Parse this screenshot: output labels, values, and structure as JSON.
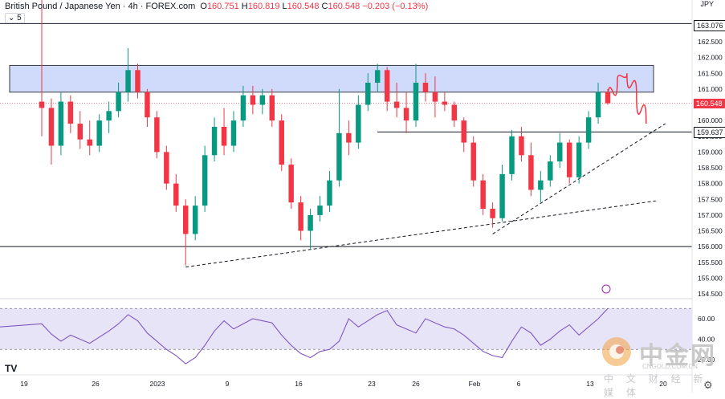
{
  "header": {
    "symbol": "British Pound / Japanese Yen · 4h · FOREX.com",
    "o_label": "O",
    "open": "160.751",
    "h_label": "H",
    "high": "160.819",
    "l_label": "L",
    "low": "160.548",
    "c_label": "C",
    "close": "160.548",
    "change": "−0.203 (−0.13%)",
    "sub_label": "5"
  },
  "currency": "JPY",
  "price_tags": {
    "resistance": "163.076",
    "current": "160.548",
    "support_mid": "159.637"
  },
  "watermark": {
    "cn": "中金网",
    "url": "CNGOLD.COM.CN",
    "sub": "中 文 财 经 新 媒 体",
    "logo": "cngold-logo"
  },
  "tv_logo": "TV",
  "settings_icon": "gear-icon",
  "colors": {
    "up": "#089981",
    "down": "#f23645",
    "zone": "#c8d5fb",
    "rsi": "#7e57c2",
    "rsi_band": "#e8e4f8"
  },
  "chart_data": {
    "type": "candlestick",
    "symbol": "GBPJPY",
    "timeframe": "4h",
    "y_axis": {
      "ticks": [
        162.5,
        162.0,
        161.5,
        161.0,
        160.5,
        160.0,
        159.5,
        159.0,
        158.5,
        158.0,
        157.5,
        157.0,
        156.5,
        156.0,
        155.5,
        155.0,
        154.5
      ],
      "labels": [
        "162.500",
        "162.000",
        "161.500",
        "161.000",
        "160.500",
        "160.000",
        "159.500",
        "159.000",
        "158.500",
        "158.000",
        "157.500",
        "157.000",
        "156.500",
        "156.000",
        "155.500",
        "155.000",
        "154.500"
      ],
      "min": 154.25,
      "max": 164.0
    },
    "x_axis": {
      "labels": [
        "19",
        "26",
        "2023",
        "9",
        "16",
        "23",
        "26",
        "Feb",
        "6",
        "13",
        "20"
      ]
    },
    "horizontal_lines": [
      163.076,
      159.637,
      156.0
    ],
    "resistance_zone": [
      160.9,
      161.75
    ],
    "last_price": 160.548,
    "candles": [
      {
        "t": 0,
        "o": 160.6,
        "h": 164.2,
        "l": 159.5,
        "c": 160.4
      },
      {
        "t": 1,
        "o": 160.4,
        "h": 160.7,
        "l": 158.6,
        "c": 159.2
      },
      {
        "t": 2,
        "o": 159.2,
        "h": 160.9,
        "l": 158.9,
        "c": 160.6
      },
      {
        "t": 3,
        "o": 160.6,
        "h": 160.8,
        "l": 159.6,
        "c": 159.9
      },
      {
        "t": 4,
        "o": 159.9,
        "h": 160.3,
        "l": 159.1,
        "c": 159.4
      },
      {
        "t": 5,
        "o": 159.4,
        "h": 160.0,
        "l": 158.9,
        "c": 159.2
      },
      {
        "t": 6,
        "o": 159.2,
        "h": 160.2,
        "l": 159.0,
        "c": 160.0
      },
      {
        "t": 7,
        "o": 160.0,
        "h": 160.6,
        "l": 159.6,
        "c": 160.3
      },
      {
        "t": 8,
        "o": 160.3,
        "h": 161.2,
        "l": 160.1,
        "c": 160.9
      },
      {
        "t": 9,
        "o": 160.9,
        "h": 162.3,
        "l": 160.6,
        "c": 161.6
      },
      {
        "t": 10,
        "o": 161.6,
        "h": 161.8,
        "l": 160.7,
        "c": 160.9
      },
      {
        "t": 11,
        "o": 160.9,
        "h": 161.0,
        "l": 159.8,
        "c": 160.1
      },
      {
        "t": 12,
        "o": 160.1,
        "h": 160.3,
        "l": 158.8,
        "c": 159.0
      },
      {
        "t": 13,
        "o": 159.0,
        "h": 159.2,
        "l": 157.8,
        "c": 158.0
      },
      {
        "t": 14,
        "o": 158.0,
        "h": 158.3,
        "l": 157.1,
        "c": 157.3
      },
      {
        "t": 15,
        "o": 157.3,
        "h": 157.5,
        "l": 155.4,
        "c": 156.4
      },
      {
        "t": 16,
        "o": 156.4,
        "h": 157.6,
        "l": 156.2,
        "c": 157.3
      },
      {
        "t": 17,
        "o": 157.3,
        "h": 159.2,
        "l": 157.1,
        "c": 158.9
      },
      {
        "t": 18,
        "o": 158.9,
        "h": 160.1,
        "l": 158.7,
        "c": 159.8
      },
      {
        "t": 19,
        "o": 159.8,
        "h": 160.4,
        "l": 158.9,
        "c": 159.2
      },
      {
        "t": 20,
        "o": 159.2,
        "h": 160.3,
        "l": 159.0,
        "c": 160.0
      },
      {
        "t": 21,
        "o": 160.0,
        "h": 161.1,
        "l": 159.8,
        "c": 160.8
      },
      {
        "t": 22,
        "o": 160.8,
        "h": 161.1,
        "l": 160.2,
        "c": 160.5
      },
      {
        "t": 23,
        "o": 160.5,
        "h": 161.0,
        "l": 160.2,
        "c": 160.8
      },
      {
        "t": 24,
        "o": 160.8,
        "h": 161.0,
        "l": 159.8,
        "c": 160.0
      },
      {
        "t": 25,
        "o": 160.0,
        "h": 160.2,
        "l": 158.4,
        "c": 158.6
      },
      {
        "t": 26,
        "o": 158.6,
        "h": 158.8,
        "l": 157.2,
        "c": 157.4
      },
      {
        "t": 27,
        "o": 157.4,
        "h": 157.6,
        "l": 156.2,
        "c": 156.5
      },
      {
        "t": 28,
        "o": 156.5,
        "h": 157.2,
        "l": 155.9,
        "c": 157.0
      },
      {
        "t": 29,
        "o": 157.0,
        "h": 157.6,
        "l": 156.8,
        "c": 157.3
      },
      {
        "t": 30,
        "o": 157.3,
        "h": 158.4,
        "l": 157.1,
        "c": 158.1
      },
      {
        "t": 31,
        "o": 158.1,
        "h": 161.0,
        "l": 157.9,
        "c": 159.6
      },
      {
        "t": 32,
        "o": 159.6,
        "h": 160.0,
        "l": 158.9,
        "c": 159.3
      },
      {
        "t": 33,
        "o": 159.3,
        "h": 160.8,
        "l": 159.1,
        "c": 160.5
      },
      {
        "t": 34,
        "o": 160.5,
        "h": 161.5,
        "l": 160.3,
        "c": 161.2
      },
      {
        "t": 35,
        "o": 161.2,
        "h": 161.8,
        "l": 160.9,
        "c": 161.6
      },
      {
        "t": 36,
        "o": 161.6,
        "h": 161.7,
        "l": 160.3,
        "c": 160.6
      },
      {
        "t": 37,
        "o": 160.6,
        "h": 161.2,
        "l": 160.1,
        "c": 160.4
      },
      {
        "t": 38,
        "o": 160.4,
        "h": 160.9,
        "l": 159.6,
        "c": 160.0
      },
      {
        "t": 39,
        "o": 160.0,
        "h": 161.8,
        "l": 159.8,
        "c": 161.2
      },
      {
        "t": 40,
        "o": 161.2,
        "h": 161.5,
        "l": 160.6,
        "c": 160.9
      },
      {
        "t": 41,
        "o": 160.9,
        "h": 161.4,
        "l": 160.1,
        "c": 160.6
      },
      {
        "t": 42,
        "o": 160.6,
        "h": 160.9,
        "l": 160.3,
        "c": 160.5
      },
      {
        "t": 43,
        "o": 160.5,
        "h": 160.6,
        "l": 159.8,
        "c": 160.0
      },
      {
        "t": 44,
        "o": 160.0,
        "h": 160.1,
        "l": 159.0,
        "c": 159.3
      },
      {
        "t": 45,
        "o": 159.3,
        "h": 159.5,
        "l": 157.9,
        "c": 158.1
      },
      {
        "t": 46,
        "o": 158.1,
        "h": 158.3,
        "l": 157.0,
        "c": 157.2
      },
      {
        "t": 47,
        "o": 157.2,
        "h": 157.4,
        "l": 156.6,
        "c": 156.9
      },
      {
        "t": 48,
        "o": 156.9,
        "h": 158.6,
        "l": 156.8,
        "c": 158.3
      },
      {
        "t": 49,
        "o": 158.3,
        "h": 159.7,
        "l": 158.1,
        "c": 159.5
      },
      {
        "t": 50,
        "o": 159.5,
        "h": 159.8,
        "l": 158.7,
        "c": 158.9
      },
      {
        "t": 51,
        "o": 158.9,
        "h": 159.3,
        "l": 157.6,
        "c": 157.8
      },
      {
        "t": 52,
        "o": 157.8,
        "h": 158.4,
        "l": 157.4,
        "c": 158.1
      },
      {
        "t": 53,
        "o": 158.1,
        "h": 158.9,
        "l": 157.9,
        "c": 158.7
      },
      {
        "t": 54,
        "o": 158.7,
        "h": 159.6,
        "l": 158.5,
        "c": 159.3
      },
      {
        "t": 55,
        "o": 159.3,
        "h": 159.4,
        "l": 158.0,
        "c": 158.2
      },
      {
        "t": 56,
        "o": 158.2,
        "h": 159.5,
        "l": 158.0,
        "c": 159.3
      },
      {
        "t": 57,
        "o": 159.3,
        "h": 160.3,
        "l": 159.1,
        "c": 160.1
      },
      {
        "t": 58,
        "o": 160.1,
        "h": 161.2,
        "l": 159.9,
        "c": 160.9
      },
      {
        "t": 59,
        "o": 160.9,
        "h": 161.0,
        "l": 160.5,
        "c": 160.55
      }
    ],
    "projection": [
      [
        59,
        160.55
      ],
      [
        60,
        161.3
      ],
      [
        61,
        161.5
      ],
      [
        62,
        160.8
      ],
      [
        63,
        159.9
      ]
    ],
    "trendlines": [
      {
        "from": [
          15,
          155.35
        ],
        "to": [
          64,
          157.45
        ],
        "style": "dashed"
      },
      {
        "from": [
          47,
          156.4
        ],
        "to": [
          65,
          159.9
        ],
        "style": "dashed"
      }
    ],
    "rsi": {
      "ticks": [
        60.0,
        40.0,
        20.0
      ],
      "labels": [
        "60.00",
        "40.00",
        "20.00"
      ],
      "band": [
        30,
        70
      ],
      "values": [
        55,
        45,
        38,
        44,
        40,
        36,
        42,
        48,
        55,
        64,
        58,
        46,
        38,
        30,
        24,
        16,
        22,
        34,
        48,
        58,
        50,
        55,
        60,
        58,
        56,
        44,
        34,
        26,
        22,
        28,
        30,
        38,
        60,
        52,
        58,
        64,
        68,
        54,
        50,
        46,
        60,
        56,
        52,
        50,
        44,
        36,
        28,
        24,
        22,
        38,
        52,
        46,
        34,
        40,
        48,
        54,
        44,
        52,
        60,
        70
      ]
    }
  }
}
